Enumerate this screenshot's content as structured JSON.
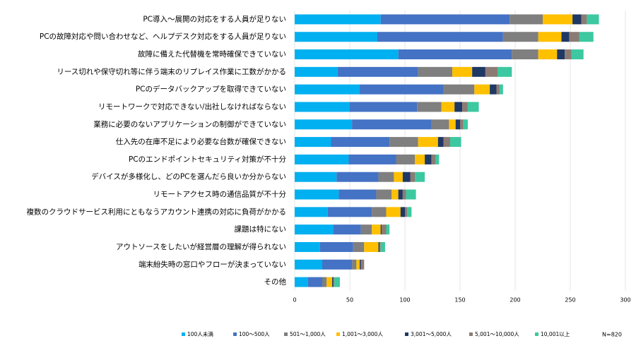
{
  "chart_data": {
    "type": "stacked-bar-horizontal",
    "categories": [
      "PC導入～展開の対応をする人員が足りない",
      "PCの故障対応や問い合わせなど、ヘルプデスク対応をする人員が足りない",
      "故障に備えた代替機を常時確保できていない",
      "リース切れや保守切れ等に伴う端末のリプレイス作業に工数がかかる",
      "PCのデータバックアップを取得できていない",
      "リモートワークで対応できない/出社しなければならない",
      "業務に必要のないアプリケーションの制御ができていない",
      "仕入先の在庫不足により必要な台数が確保できない",
      "PCのエンドポイントセキュリティ対策が不十分",
      "デバイスが多様化し、どのPCを選んだら良いか分からない",
      "リモートアクセス時の通信品質が不十分",
      "複数のクラウドサービス利用にともなうアカウント連携の対応に負荷がかかる",
      "課題は特にない",
      "アウトソースをしたいが経営層の理解が得られない",
      "端末紛失時の窓口やフローが決まっていない",
      "その他"
    ],
    "series": [
      {
        "name": "100人未満",
        "color": "#00b0f0",
        "values": [
          78,
          75,
          94,
          39,
          59,
          50,
          52,
          33,
          49,
          38,
          40,
          30,
          35,
          23,
          25,
          12
        ]
      },
      {
        "name": "100～500人",
        "color": "#4472c4",
        "values": [
          117,
          114,
          103,
          73,
          76,
          61,
          72,
          53,
          43,
          38,
          34,
          40,
          25,
          30,
          27,
          13
        ]
      },
      {
        "name": "501～1,000人",
        "color": "#7f7f7f",
        "values": [
          30,
          32,
          24,
          31,
          28,
          22,
          16,
          26,
          17,
          14,
          14,
          13,
          10,
          10,
          4,
          4
        ]
      },
      {
        "name": "1,001～3,000人",
        "color": "#ffc000",
        "values": [
          27,
          21,
          17,
          18,
          14,
          12,
          6,
          18,
          9,
          8,
          6,
          13,
          8,
          13,
          3,
          5
        ]
      },
      {
        "name": "3,001～5,000人",
        "color": "#1f3864",
        "values": [
          8,
          7,
          7,
          12,
          6,
          7,
          4,
          5,
          6,
          7,
          4,
          4,
          1,
          1,
          1,
          1
        ]
      },
      {
        "name": "5,001～10,000人",
        "color": "#8c7b74",
        "values": [
          5,
          9,
          6,
          11,
          3,
          5,
          3,
          6,
          4,
          4,
          3,
          2,
          4,
          1,
          3,
          1
        ]
      },
      {
        "name": "10,001以上",
        "color": "#3cc8a0",
        "values": [
          11,
          13,
          11,
          13,
          3,
          10,
          4,
          10,
          3,
          9,
          9,
          4,
          3,
          4,
          0,
          5
        ]
      }
    ],
    "xlim": [
      0,
      300
    ],
    "xticks": [
      0,
      50,
      100,
      150,
      200,
      250,
      300
    ],
    "grid": true,
    "note": "N=820"
  }
}
